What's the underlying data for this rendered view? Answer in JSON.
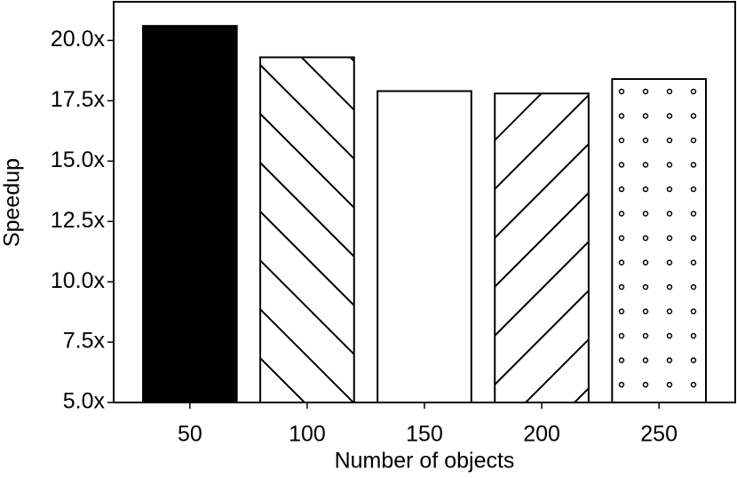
{
  "chart_data": {
    "type": "bar",
    "x_label": "Number of objects",
    "y_label": "Speedup",
    "categories": [
      "50",
      "100",
      "150",
      "200",
      "250"
    ],
    "values": [
      20.6,
      19.3,
      17.9,
      17.8,
      18.4
    ],
    "fills": [
      "black",
      "white",
      "white",
      "white",
      "white"
    ],
    "hatches": [
      null,
      "\\",
      null,
      "/",
      "o"
    ],
    "ylim": [
      5,
      21.6
    ],
    "yticks": [
      {
        "value": 5,
        "label": "5.0x"
      },
      {
        "value": 7.5,
        "label": "7.5x"
      },
      {
        "value": 10,
        "label": "10.0x"
      },
      {
        "value": 12.5,
        "label": "12.5x"
      },
      {
        "value": 15,
        "label": "15.0x"
      },
      {
        "value": 17.5,
        "label": "17.5x"
      },
      {
        "value": 20,
        "label": "20.0x"
      }
    ],
    "grid": false
  }
}
